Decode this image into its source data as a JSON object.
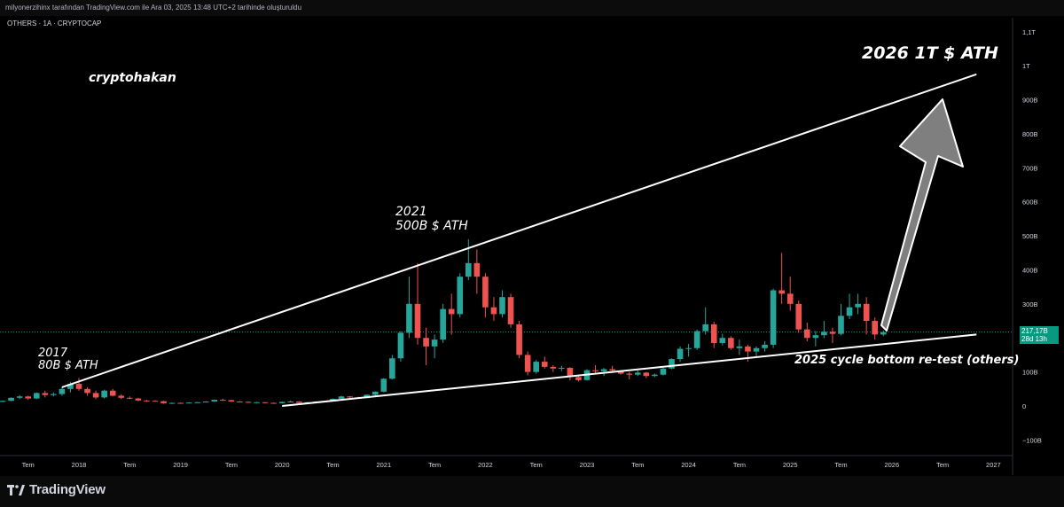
{
  "header": {
    "attribution": "milyonerzihinx tarafından TradingView.com ile Ara 03, 2025 13:48 UTC+2 tarihinde oluşturuldu"
  },
  "symbol": "OTHERS · 1A · CRYPTOCAP",
  "author": "cryptohakan",
  "brand": "TradingView",
  "price_label": {
    "value": "217,17B",
    "countdown": "28d 13h"
  },
  "colors": {
    "up": "#26a69a",
    "down": "#ef5350",
    "trend": "#ffffff",
    "arrow": "#7f7f7f",
    "price_line": "#089981"
  },
  "chart_data": {
    "type": "candlestick",
    "title": "OTHERS · 1A · CRYPTOCAP",
    "interval": "monthly",
    "x_tick_labels": [
      "Tem",
      "2018",
      "Tem",
      "2019",
      "Tem",
      "2020",
      "Tem",
      "2021",
      "Tem",
      "2022",
      "Tem",
      "2023",
      "Tem",
      "2024",
      "Tem",
      "2025",
      "Tem",
      "2026",
      "Tem",
      "2027"
    ],
    "y_tick_labels": [
      "1,1T",
      "1T",
      "900B",
      "800B",
      "700B",
      "600B",
      "500B",
      "400B",
      "300B",
      "200B",
      "100B",
      "0",
      "−100B"
    ],
    "y_ticks": [
      1100,
      1000,
      900,
      800,
      700,
      600,
      500,
      400,
      300,
      200,
      100,
      0,
      -100
    ],
    "ylim": [
      -110,
      1130
    ],
    "unit": "B USD",
    "current_price": 217.17,
    "annotations": {
      "ath_2017": [
        "2017",
        "80B $ ATH"
      ],
      "ath_2021": [
        "2021",
        "500B $ ATH"
      ],
      "target_2026": "2026 1T $ ATH",
      "retest": "2025 cycle bottom re-test (others)"
    },
    "trendlines": [
      {
        "name": "upper",
        "from": [
          "2017-11",
          55
        ],
        "to": [
          "2026-11",
          975
        ]
      },
      {
        "name": "lower",
        "from": [
          "2020-01",
          0
        ],
        "to": [
          "2026-11",
          210
        ]
      }
    ],
    "candles": [
      {
        "t": "2017-01",
        "o": 8,
        "h": 10,
        "l": 7,
        "c": 9
      },
      {
        "t": "2017-02",
        "o": 9,
        "h": 10,
        "l": 8,
        "c": 9
      },
      {
        "t": "2017-03",
        "o": 9,
        "h": 13,
        "l": 8,
        "c": 12
      },
      {
        "t": "2017-04",
        "o": 12,
        "h": 16,
        "l": 11,
        "c": 15
      },
      {
        "t": "2017-05",
        "o": 15,
        "h": 25,
        "l": 14,
        "c": 24
      },
      {
        "t": "2017-06",
        "o": 24,
        "h": 32,
        "l": 20,
        "c": 28
      },
      {
        "t": "2017-07",
        "o": 28,
        "h": 30,
        "l": 18,
        "c": 22
      },
      {
        "t": "2017-08",
        "o": 22,
        "h": 40,
        "l": 20,
        "c": 38
      },
      {
        "t": "2017-09",
        "o": 38,
        "h": 45,
        "l": 25,
        "c": 32
      },
      {
        "t": "2017-10",
        "o": 32,
        "h": 40,
        "l": 28,
        "c": 35
      },
      {
        "t": "2017-11",
        "o": 35,
        "h": 55,
        "l": 30,
        "c": 50
      },
      {
        "t": "2017-12",
        "o": 50,
        "h": 70,
        "l": 40,
        "c": 65
      },
      {
        "t": "2018-01",
        "o": 65,
        "h": 82,
        "l": 45,
        "c": 50
      },
      {
        "t": "2018-02",
        "o": 50,
        "h": 55,
        "l": 30,
        "c": 38
      },
      {
        "t": "2018-03",
        "o": 38,
        "h": 45,
        "l": 20,
        "c": 25
      },
      {
        "t": "2018-04",
        "o": 25,
        "h": 48,
        "l": 22,
        "c": 45
      },
      {
        "t": "2018-05",
        "o": 45,
        "h": 50,
        "l": 28,
        "c": 30
      },
      {
        "t": "2018-06",
        "o": 30,
        "h": 34,
        "l": 20,
        "c": 24
      },
      {
        "t": "2018-07",
        "o": 24,
        "h": 28,
        "l": 20,
        "c": 22
      },
      {
        "t": "2018-08",
        "o": 22,
        "h": 24,
        "l": 14,
        "c": 16
      },
      {
        "t": "2018-09",
        "o": 16,
        "h": 18,
        "l": 12,
        "c": 15
      },
      {
        "t": "2018-10",
        "o": 15,
        "h": 17,
        "l": 13,
        "c": 14
      },
      {
        "t": "2018-11",
        "o": 14,
        "h": 15,
        "l": 7,
        "c": 8
      },
      {
        "t": "2018-12",
        "o": 8,
        "h": 10,
        "l": 6,
        "c": 9
      },
      {
        "t": "2019-01",
        "o": 9,
        "h": 10,
        "l": 7,
        "c": 8
      },
      {
        "t": "2019-02",
        "o": 8,
        "h": 11,
        "l": 8,
        "c": 10
      },
      {
        "t": "2019-03",
        "o": 10,
        "h": 12,
        "l": 9,
        "c": 11
      },
      {
        "t": "2019-04",
        "o": 11,
        "h": 14,
        "l": 10,
        "c": 13
      },
      {
        "t": "2019-05",
        "o": 13,
        "h": 19,
        "l": 12,
        "c": 18
      },
      {
        "t": "2019-06",
        "o": 18,
        "h": 21,
        "l": 15,
        "c": 17
      },
      {
        "t": "2019-07",
        "o": 17,
        "h": 18,
        "l": 12,
        "c": 13
      },
      {
        "t": "2019-08",
        "o": 13,
        "h": 14,
        "l": 11,
        "c": 12
      },
      {
        "t": "2019-09",
        "o": 12,
        "h": 13,
        "l": 9,
        "c": 10
      },
      {
        "t": "2019-10",
        "o": 10,
        "h": 12,
        "l": 9,
        "c": 11
      },
      {
        "t": "2019-11",
        "o": 11,
        "h": 11,
        "l": 8,
        "c": 9
      },
      {
        "t": "2019-12",
        "o": 9,
        "h": 10,
        "l": 8,
        "c": 8
      },
      {
        "t": "2020-01",
        "o": 8,
        "h": 13,
        "l": 8,
        "c": 12
      },
      {
        "t": "2020-02",
        "o": 12,
        "h": 16,
        "l": 11,
        "c": 13
      },
      {
        "t": "2020-03",
        "o": 13,
        "h": 14,
        "l": 6,
        "c": 9
      },
      {
        "t": "2020-04",
        "o": 9,
        "h": 12,
        "l": 8,
        "c": 11
      },
      {
        "t": "2020-05",
        "o": 11,
        "h": 14,
        "l": 10,
        "c": 13
      },
      {
        "t": "2020-06",
        "o": 13,
        "h": 15,
        "l": 12,
        "c": 14
      },
      {
        "t": "2020-07",
        "o": 14,
        "h": 22,
        "l": 13,
        "c": 21
      },
      {
        "t": "2020-08",
        "o": 21,
        "h": 30,
        "l": 20,
        "c": 28
      },
      {
        "t": "2020-09",
        "o": 28,
        "h": 29,
        "l": 22,
        "c": 25
      },
      {
        "t": "2020-10",
        "o": 25,
        "h": 27,
        "l": 21,
        "c": 23
      },
      {
        "t": "2020-11",
        "o": 23,
        "h": 34,
        "l": 22,
        "c": 33
      },
      {
        "t": "2020-12",
        "o": 33,
        "h": 43,
        "l": 28,
        "c": 42
      },
      {
        "t": "2021-01",
        "o": 42,
        "h": 82,
        "l": 40,
        "c": 80
      },
      {
        "t": "2021-02",
        "o": 80,
        "h": 150,
        "l": 78,
        "c": 140
      },
      {
        "t": "2021-03",
        "o": 140,
        "h": 220,
        "l": 130,
        "c": 215
      },
      {
        "t": "2021-04",
        "o": 215,
        "h": 380,
        "l": 200,
        "c": 300
      },
      {
        "t": "2021-05",
        "o": 300,
        "h": 420,
        "l": 180,
        "c": 200
      },
      {
        "t": "2021-06",
        "o": 200,
        "h": 230,
        "l": 120,
        "c": 175
      },
      {
        "t": "2021-07",
        "o": 175,
        "h": 210,
        "l": 140,
        "c": 195
      },
      {
        "t": "2021-08",
        "o": 195,
        "h": 300,
        "l": 185,
        "c": 285
      },
      {
        "t": "2021-09",
        "o": 285,
        "h": 330,
        "l": 210,
        "c": 270
      },
      {
        "t": "2021-10",
        "o": 270,
        "h": 390,
        "l": 260,
        "c": 380
      },
      {
        "t": "2021-11",
        "o": 380,
        "h": 490,
        "l": 370,
        "c": 420
      },
      {
        "t": "2021-12",
        "o": 420,
        "h": 460,
        "l": 330,
        "c": 380
      },
      {
        "t": "2022-01",
        "o": 380,
        "h": 390,
        "l": 260,
        "c": 290
      },
      {
        "t": "2022-02",
        "o": 290,
        "h": 320,
        "l": 250,
        "c": 270
      },
      {
        "t": "2022-03",
        "o": 270,
        "h": 340,
        "l": 260,
        "c": 320
      },
      {
        "t": "2022-04",
        "o": 320,
        "h": 330,
        "l": 230,
        "c": 240
      },
      {
        "t": "2022-05",
        "o": 240,
        "h": 250,
        "l": 140,
        "c": 150
      },
      {
        "t": "2022-06",
        "o": 150,
        "h": 160,
        "l": 90,
        "c": 100
      },
      {
        "t": "2022-07",
        "o": 100,
        "h": 135,
        "l": 95,
        "c": 130
      },
      {
        "t": "2022-08",
        "o": 130,
        "h": 145,
        "l": 110,
        "c": 115
      },
      {
        "t": "2022-09",
        "o": 115,
        "h": 120,
        "l": 100,
        "c": 110
      },
      {
        "t": "2022-10",
        "o": 110,
        "h": 118,
        "l": 102,
        "c": 112
      },
      {
        "t": "2022-11",
        "o": 112,
        "h": 114,
        "l": 75,
        "c": 85
      },
      {
        "t": "2022-12",
        "o": 85,
        "h": 88,
        "l": 72,
        "c": 76
      },
      {
        "t": "2023-01",
        "o": 76,
        "h": 108,
        "l": 75,
        "c": 105
      },
      {
        "t": "2023-02",
        "o": 105,
        "h": 120,
        "l": 95,
        "c": 102
      },
      {
        "t": "2023-03",
        "o": 102,
        "h": 112,
        "l": 88,
        "c": 108
      },
      {
        "t": "2023-04",
        "o": 108,
        "h": 118,
        "l": 100,
        "c": 104
      },
      {
        "t": "2023-05",
        "o": 104,
        "h": 106,
        "l": 92,
        "c": 95
      },
      {
        "t": "2023-06",
        "o": 95,
        "h": 100,
        "l": 78,
        "c": 92
      },
      {
        "t": "2023-07",
        "o": 92,
        "h": 104,
        "l": 88,
        "c": 98
      },
      {
        "t": "2023-08",
        "o": 98,
        "h": 100,
        "l": 82,
        "c": 88
      },
      {
        "t": "2023-09",
        "o": 88,
        "h": 95,
        "l": 85,
        "c": 92
      },
      {
        "t": "2023-10",
        "o": 92,
        "h": 112,
        "l": 90,
        "c": 110
      },
      {
        "t": "2023-11",
        "o": 110,
        "h": 140,
        "l": 108,
        "c": 138
      },
      {
        "t": "2023-12",
        "o": 138,
        "h": 175,
        "l": 130,
        "c": 168
      },
      {
        "t": "2024-01",
        "o": 168,
        "h": 182,
        "l": 145,
        "c": 170
      },
      {
        "t": "2024-02",
        "o": 170,
        "h": 225,
        "l": 165,
        "c": 220
      },
      {
        "t": "2024-03",
        "o": 220,
        "h": 290,
        "l": 210,
        "c": 240
      },
      {
        "t": "2024-04",
        "o": 240,
        "h": 248,
        "l": 170,
        "c": 185
      },
      {
        "t": "2024-05",
        "o": 185,
        "h": 212,
        "l": 178,
        "c": 200
      },
      {
        "t": "2024-06",
        "o": 200,
        "h": 205,
        "l": 165,
        "c": 170
      },
      {
        "t": "2024-07",
        "o": 170,
        "h": 195,
        "l": 150,
        "c": 175
      },
      {
        "t": "2024-08",
        "o": 175,
        "h": 180,
        "l": 130,
        "c": 160
      },
      {
        "t": "2024-09",
        "o": 160,
        "h": 175,
        "l": 145,
        "c": 170
      },
      {
        "t": "2024-10",
        "o": 170,
        "h": 190,
        "l": 160,
        "c": 180
      },
      {
        "t": "2024-11",
        "o": 180,
        "h": 345,
        "l": 170,
        "c": 340
      },
      {
        "t": "2024-12",
        "o": 340,
        "h": 450,
        "l": 300,
        "c": 330
      },
      {
        "t": "2025-01",
        "o": 330,
        "h": 380,
        "l": 280,
        "c": 300
      },
      {
        "t": "2025-02",
        "o": 300,
        "h": 310,
        "l": 215,
        "c": 225
      },
      {
        "t": "2025-03",
        "o": 225,
        "h": 245,
        "l": 190,
        "c": 200
      },
      {
        "t": "2025-04",
        "o": 200,
        "h": 220,
        "l": 175,
        "c": 208
      },
      {
        "t": "2025-05",
        "o": 208,
        "h": 250,
        "l": 200,
        "c": 218
      },
      {
        "t": "2025-06",
        "o": 218,
        "h": 230,
        "l": 185,
        "c": 212
      },
      {
        "t": "2025-07",
        "o": 212,
        "h": 300,
        "l": 208,
        "c": 265
      },
      {
        "t": "2025-08",
        "o": 265,
        "h": 330,
        "l": 255,
        "c": 290
      },
      {
        "t": "2025-09",
        "o": 290,
        "h": 330,
        "l": 270,
        "c": 300
      },
      {
        "t": "2025-10",
        "o": 300,
        "h": 320,
        "l": 210,
        "c": 250
      },
      {
        "t": "2025-11",
        "o": 250,
        "h": 260,
        "l": 195,
        "c": 210
      },
      {
        "t": "2025-12",
        "o": 210,
        "h": 222,
        "l": 205,
        "c": 217.17
      }
    ]
  }
}
